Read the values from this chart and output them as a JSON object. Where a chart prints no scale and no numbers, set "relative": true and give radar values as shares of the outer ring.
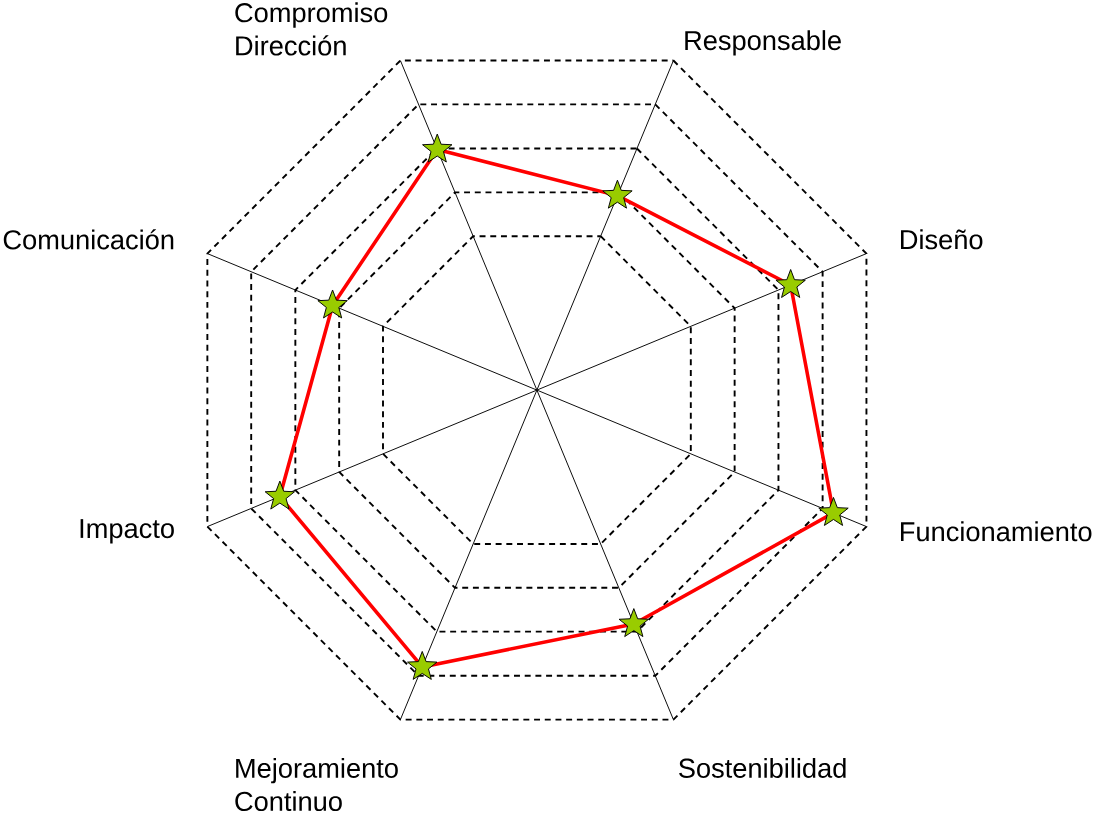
{
  "chart_data": {
    "type": "radar",
    "relative": true,
    "categories": [
      "Responsable",
      "Diseño",
      "Funcionamiento",
      "Sostenibilidad",
      "Mejoramiento Continuo",
      "Impacto",
      "Comunicación",
      "Compromiso Dirección"
    ],
    "series": [
      {
        "color": "#ff0000",
        "values": [
          0.59,
          0.77,
          0.9,
          0.71,
          0.84,
          0.78,
          0.62,
          0.73
        ]
      }
    ],
    "marker": "star",
    "grid": true
  }
}
